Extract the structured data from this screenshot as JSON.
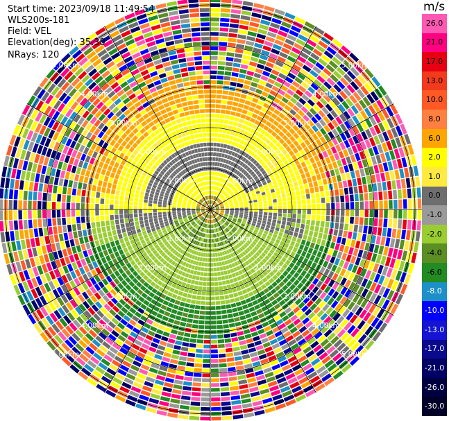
{
  "header": {
    "start_time": "Start time: 2023/09/18 11:49:54",
    "instrument": "WLS200s-181",
    "field": "Field: VEL",
    "elevation": "Elevation(deg): 35.30",
    "nrays": "NRays: 120"
  },
  "colorbar": {
    "unit": "m/s",
    "levels": [
      {
        "label": "26.0",
        "color": "#ff59b3"
      },
      {
        "label": "21.0",
        "color": "#ff0080"
      },
      {
        "label": "17.0",
        "color": "#e60012"
      },
      {
        "label": "13.0",
        "color": "#f23a1c"
      },
      {
        "label": "10.0",
        "color": "#ff5a26"
      },
      {
        "label": "8.0",
        "color": "#ff8040"
      },
      {
        "label": "6.0",
        "color": "#ffa500"
      },
      {
        "label": "2.0",
        "color": "#ffff00"
      },
      {
        "label": "1.0",
        "color": "#ffea40"
      },
      {
        "label": "0.0",
        "color": "#6e6e6e"
      },
      {
        "label": "-1.0",
        "color": "#9a9a9a"
      },
      {
        "label": "-2.0",
        "color": "#9acd32"
      },
      {
        "label": "-4.0",
        "color": "#5b8e23"
      },
      {
        "label": "-6.0",
        "color": "#228b22"
      },
      {
        "label": "-8.0",
        "color": "#1e90c8"
      },
      {
        "label": "-10.0",
        "color": "#0000ff"
      },
      {
        "label": "-13.0",
        "color": "#1414d2"
      },
      {
        "label": "-17.0",
        "color": "#0a0a8c"
      },
      {
        "label": "-21.0",
        "color": "#000064"
      },
      {
        "label": "-26.0",
        "color": "#000040"
      },
      {
        "label": "-30.0",
        "color": "#000028"
      }
    ]
  },
  "chart_data": {
    "type": "heatmap",
    "subtype": "ppi-polar",
    "title": "",
    "field": "VEL",
    "units": "m/s",
    "nrays": 120,
    "elevation_deg": 35.3,
    "range_rings_km": [
      "1.00km",
      "2.00km",
      "3.00km",
      "4.00km",
      "5.00km"
    ],
    "max_range_km": 5.5,
    "velocity_zones": [
      {
        "range_km": [
          0.0,
          0.5
        ],
        "direction": "all",
        "value_ms": 1.5
      },
      {
        "range_km": [
          0.5,
          1.5
        ],
        "direction": "north",
        "value_ms": 2.0
      },
      {
        "range_km": [
          0.5,
          1.5
        ],
        "direction": "south",
        "value_ms": -1.5
      },
      {
        "range_km": [
          1.5,
          2.5
        ],
        "direction": "north",
        "value_ms": 4.0
      },
      {
        "range_km": [
          1.5,
          2.5
        ],
        "direction": "south",
        "value_ms": -5.0
      },
      {
        "range_km": [
          2.5,
          3.2
        ],
        "direction": "north",
        "value_ms": 6.0
      },
      {
        "range_km": [
          2.5,
          3.2
        ],
        "direction": "south",
        "value_ms": -7.0
      },
      {
        "range_km": [
          3.2,
          5.5
        ],
        "direction": "all",
        "value_ms": "noise"
      }
    ],
    "grid": true
  },
  "rings": [
    {
      "label": "1.00km"
    },
    {
      "label": "2.00km"
    },
    {
      "label": "3.00km"
    },
    {
      "label": "4.00km"
    },
    {
      "label": "5.00km"
    }
  ]
}
